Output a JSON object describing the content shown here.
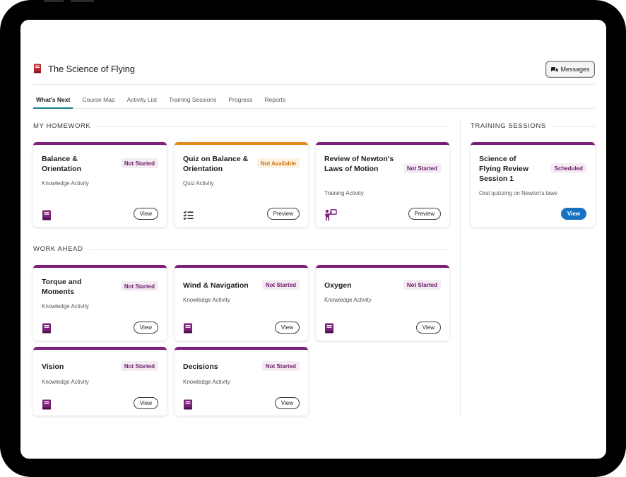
{
  "page": {
    "title": "The Science of Flying",
    "messages_label": "Messages"
  },
  "tabs": [
    {
      "label": "What's Next",
      "active": true
    },
    {
      "label": "Course Map"
    },
    {
      "label": "Activity List"
    },
    {
      "label": "Training Sessions"
    },
    {
      "label": "Progress"
    },
    {
      "label": "Reports"
    }
  ],
  "homework": {
    "heading": "MY HOMEWORK",
    "cards": [
      {
        "title": "Balance & Orientation",
        "type": "Knowledge Activity",
        "status": "Not Started",
        "button": "View",
        "icon": "book-icon"
      },
      {
        "title": "Quiz on Balance & Orientation",
        "type": "Quiz Activity",
        "status": "Not Available",
        "button": "Preview",
        "icon": "checklist-icon"
      },
      {
        "title": "Review of Newton's Laws of Motion",
        "type": "Training Activity",
        "status": "Not Started",
        "button": "Preview",
        "icon": "presenter-icon"
      }
    ]
  },
  "work_ahead": {
    "heading": "WORK AHEAD",
    "cards": [
      {
        "title": "Torque and Moments",
        "type": "Knowledge Activity",
        "status": "Not Started",
        "button": "View",
        "icon": "book-icon"
      },
      {
        "title": "Wind & Navigation",
        "type": "Knowledge Activity",
        "status": "Not Started",
        "button": "View",
        "icon": "book-icon"
      },
      {
        "title": "Oxygen",
        "type": "Knowledge Activity",
        "status": "Not Started",
        "button": "View",
        "icon": "book-icon"
      },
      {
        "title": "Vision",
        "type": "Knowledge Activity",
        "status": "Not Started",
        "button": "View",
        "icon": "book-icon"
      },
      {
        "title": "Decisions",
        "type": "Knowledge Activity",
        "status": "Not Started",
        "button": "View",
        "icon": "book-icon"
      }
    ]
  },
  "training_sessions": {
    "heading": "TRAINING SESSIONS",
    "cards": [
      {
        "title": "Science of Flying Review Session 1",
        "description": "Oral quizzing on Newton's laws",
        "status": "Scheduled",
        "button": "View"
      }
    ]
  },
  "colors": {
    "accent_purple": "#7b1f78",
    "accent_orange": "#dd8a1d",
    "tab_underline": "#1a7f8c",
    "primary_blue": "#1673c4"
  }
}
